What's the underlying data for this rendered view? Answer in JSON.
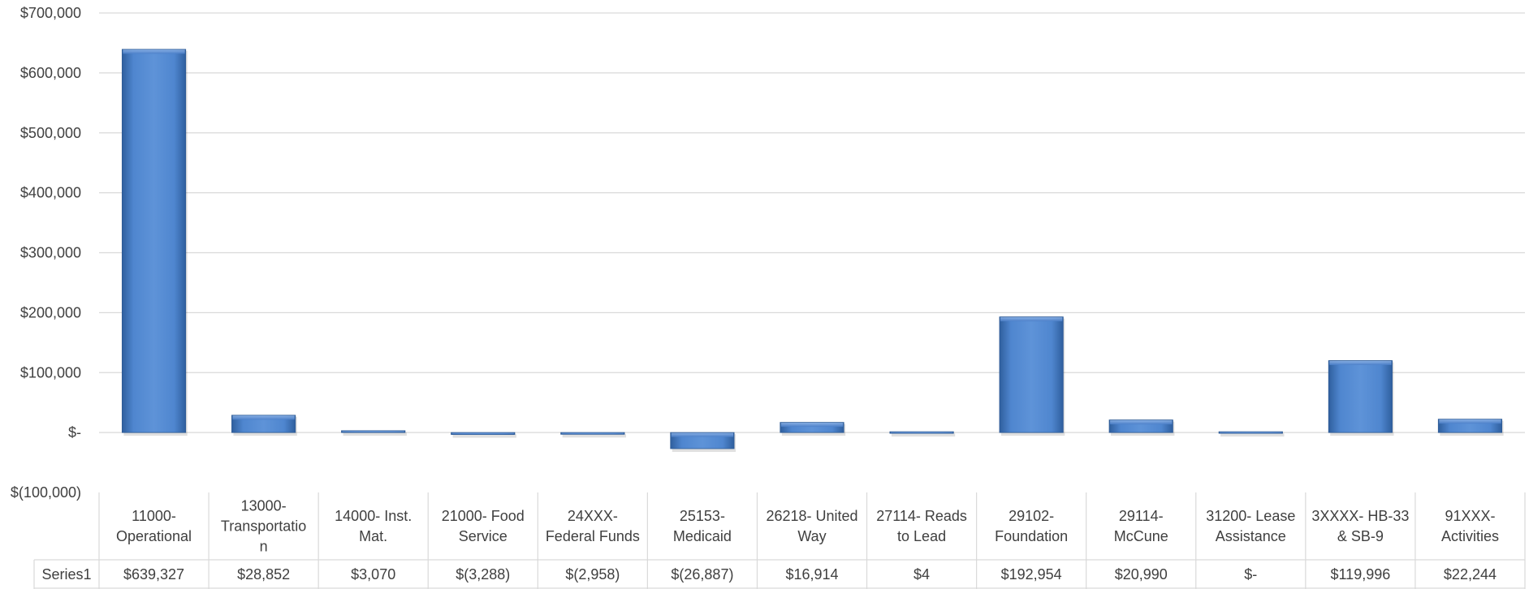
{
  "chart_data": {
    "type": "bar",
    "title": "",
    "xlabel": "",
    "ylabel": "",
    "ylim": [
      -100000,
      700000
    ],
    "yticks": [
      700000,
      600000,
      500000,
      400000,
      300000,
      200000,
      100000,
      0,
      -100000
    ],
    "ytick_labels": [
      "$700,000",
      "$600,000",
      "$500,000",
      "$400,000",
      "$300,000",
      "$200,000",
      "$100,000",
      "$-",
      "$(100,000)"
    ],
    "grid": true,
    "data_table": true,
    "bar_color": "#4a7ec8",
    "categories": [
      [
        "11000-",
        "Operational"
      ],
      [
        "13000-",
        "Transportatio",
        "n"
      ],
      [
        "14000- Inst.",
        "Mat."
      ],
      [
        "21000- Food",
        "Service"
      ],
      [
        "24XXX-",
        "Federal Funds"
      ],
      [
        "25153-",
        "Medicaid"
      ],
      [
        "26218- United",
        "Way"
      ],
      [
        "27114- Reads",
        "to Lead"
      ],
      [
        "29102-",
        "Foundation"
      ],
      [
        "29114-",
        "McCune"
      ],
      [
        "31200- Lease",
        "Assistance"
      ],
      [
        "3XXXX- HB-33",
        "& SB-9"
      ],
      [
        "91XXX-",
        "Activities"
      ]
    ],
    "series": [
      {
        "name": "Series1",
        "values": [
          639327,
          28852,
          3070,
          -3288,
          -2958,
          -26887,
          16914,
          4,
          192954,
          20990,
          0,
          119996,
          22244
        ],
        "value_labels": [
          "$639,327",
          "$28,852",
          "$3,070",
          "$(3,288)",
          "$(2,958)",
          "$(26,887)",
          "$16,914",
          "$4",
          "$192,954",
          "$20,990",
          "$-",
          "$119,996",
          "$22,244"
        ]
      }
    ]
  }
}
